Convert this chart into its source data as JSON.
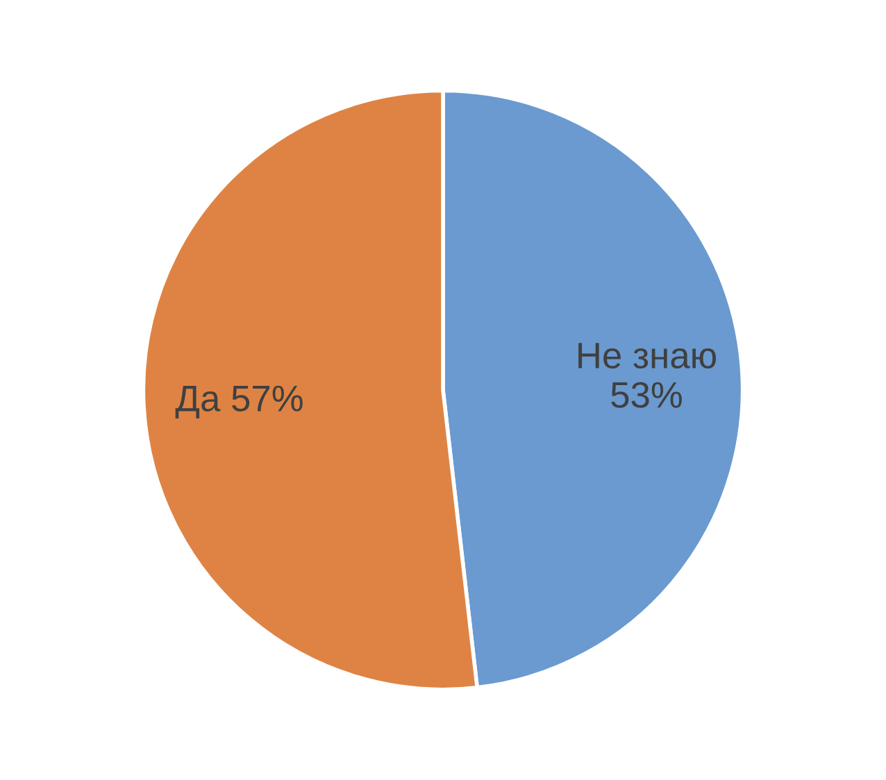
{
  "chart_data": {
    "type": "pie",
    "categories": [
      "Не знаю",
      "Да"
    ],
    "values": [
      53,
      57
    ],
    "value_labels": [
      "53%",
      "57%"
    ],
    "colors": [
      "#6a9ad0",
      "#df8344"
    ]
  }
}
